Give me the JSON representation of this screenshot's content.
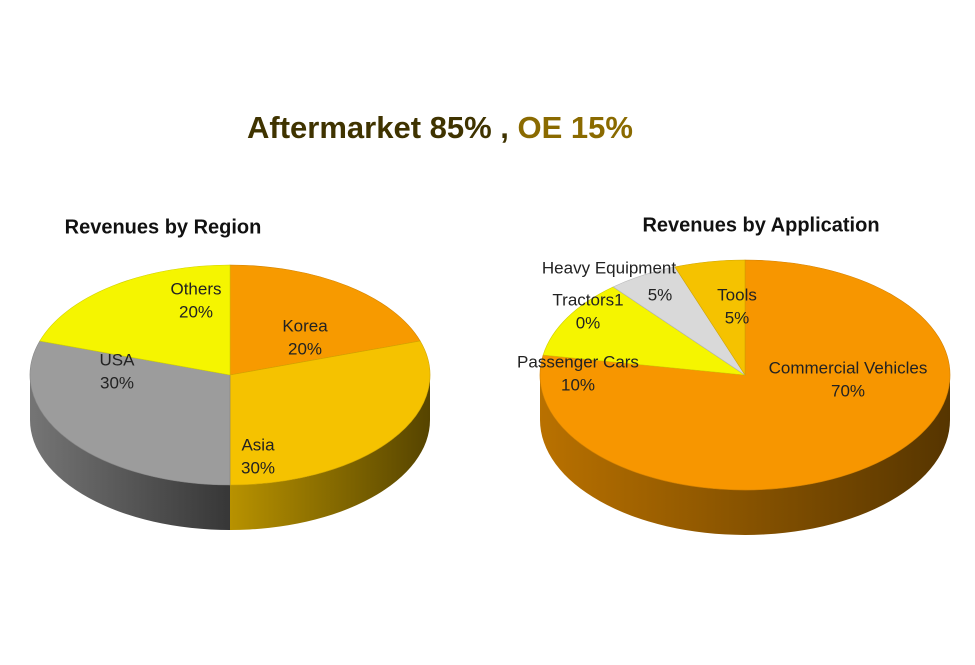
{
  "headline": {
    "part1": "Aftermarket 85% ,",
    "part2": "OE 15%"
  },
  "chart_data": [
    {
      "type": "pie",
      "title": "Revenues by Region",
      "categories": [
        "Korea",
        "Asia",
        "USA",
        "Others"
      ],
      "values": [
        20,
        30,
        30,
        20
      ],
      "value_labels": [
        "20%",
        "30%",
        "30%",
        "20%"
      ],
      "colors": [
        "#f79a00",
        "#f5c200",
        "#9c9c9c",
        "#f5f500"
      ]
    },
    {
      "type": "pie",
      "title": "Revenues by Application",
      "categories": [
        "Commercial Vehicles",
        "Passenger Cars",
        "Tractors1",
        "Heavy Equipment",
        "Tools"
      ],
      "values": [
        70,
        10,
        0,
        5,
        5
      ],
      "value_labels": [
        "70%",
        "10%",
        "0%",
        "5%",
        "5%"
      ],
      "colors": [
        "#f79600",
        "#f5f500",
        "#a0a0a0",
        "#d9d9d9",
        "#f5c200"
      ]
    }
  ]
}
